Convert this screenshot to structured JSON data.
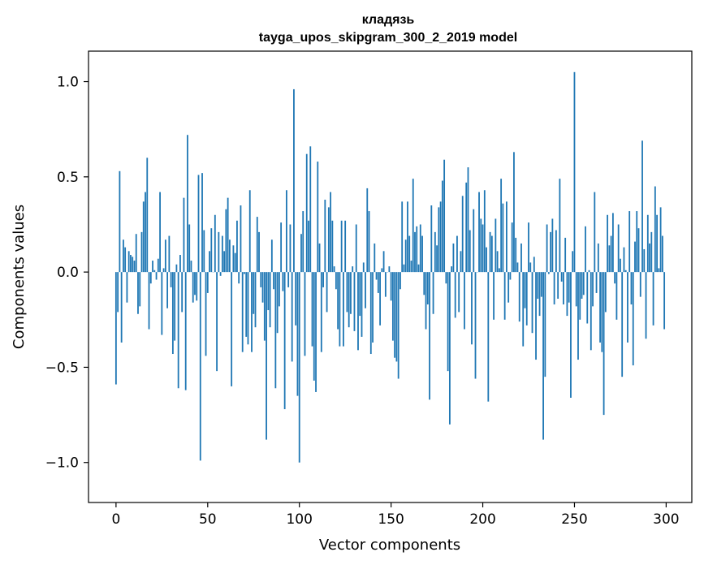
{
  "chart_data": {
    "type": "bar",
    "title": "кладязь",
    "subtitle": "tayga_upos_skipgram_300_2_2019 model",
    "xlabel": "Vector components",
    "ylabel": "Components values",
    "xlim": [
      -15,
      314
    ],
    "ylim": [
      -1.21,
      1.16
    ],
    "xticks": [
      0,
      50,
      100,
      150,
      200,
      250,
      300
    ],
    "yticks": [
      -1.0,
      -0.5,
      0.0,
      0.5,
      1.0
    ],
    "ytick_labels": [
      "−1.0",
      "−0.5",
      "0.0",
      "0.5",
      "1.0"
    ],
    "xtick_labels": [
      "0",
      "50",
      "100",
      "150",
      "200",
      "250",
      "300"
    ],
    "grid": false,
    "bar_color": "#1f77b4",
    "values": [
      -0.59,
      -0.21,
      0.53,
      -0.37,
      0.17,
      0.13,
      -0.16,
      0.11,
      0.09,
      0.08,
      0.06,
      0.2,
      -0.22,
      -0.18,
      0.21,
      0.37,
      0.42,
      0.6,
      -0.3,
      -0.06,
      0.06,
      0.01,
      -0.04,
      0.07,
      0.42,
      -0.33,
      0.02,
      0.17,
      -0.19,
      0.19,
      -0.08,
      -0.43,
      -0.36,
      0.04,
      -0.61,
      0.09,
      -0.21,
      0.39,
      -0.62,
      0.72,
      0.25,
      0.06,
      -0.16,
      -0.12,
      -0.15,
      0.51,
      -0.99,
      0.52,
      0.22,
      -0.44,
      -0.11,
      0.11,
      0.23,
      0.0,
      0.3,
      -0.52,
      0.21,
      -0.02,
      0.19,
      0.11,
      0.33,
      0.39,
      0.17,
      -0.6,
      0.14,
      0.1,
      0.27,
      -0.06,
      0.35,
      -0.42,
      -0.01,
      -0.34,
      -0.38,
      0.43,
      -0.42,
      -0.22,
      -0.29,
      0.29,
      0.21,
      -0.08,
      -0.16,
      -0.36,
      -0.88,
      -0.2,
      -0.29,
      0.17,
      -0.09,
      -0.61,
      -0.32,
      -0.18,
      0.26,
      -0.1,
      -0.72,
      0.43,
      -0.08,
      0.25,
      -0.47,
      0.96,
      -0.28,
      -0.65,
      -1.0,
      0.2,
      0.32,
      -0.44,
      0.62,
      0.27,
      0.66,
      -0.39,
      -0.57,
      -0.63,
      0.58,
      0.15,
      -0.42,
      -0.08,
      0.38,
      -0.21,
      0.34,
      0.42,
      0.27,
      0.03,
      -0.09,
      -0.3,
      -0.39,
      0.27,
      -0.39,
      0.27,
      -0.21,
      -0.29,
      -0.22,
      0.03,
      -0.31,
      0.25,
      -0.41,
      -0.23,
      -0.34,
      0.05,
      -0.19,
      0.44,
      0.32,
      -0.43,
      -0.37,
      0.15,
      -0.04,
      -0.11,
      -0.28,
      0.02,
      0.11,
      -0.13,
      0.0,
      0.03,
      -0.15,
      -0.36,
      -0.45,
      -0.47,
      -0.56,
      -0.09,
      0.37,
      0.04,
      0.17,
      0.37,
      0.19,
      0.06,
      0.49,
      0.21,
      0.24,
      0.04,
      0.25,
      0.19,
      -0.12,
      -0.3,
      -0.17,
      -0.67,
      0.35,
      -0.22,
      0.21,
      0.14,
      0.34,
      0.37,
      0.48,
      0.59,
      -0.06,
      -0.52,
      -0.8,
      0.03,
      0.15,
      -0.24,
      0.19,
      -0.21,
      0.11,
      0.4,
      -0.3,
      0.47,
      0.55,
      0.22,
      -0.38,
      0.33,
      -0.56,
      0.0,
      0.42,
      0.28,
      0.25,
      0.43,
      0.13,
      -0.68,
      0.21,
      0.19,
      -0.25,
      0.28,
      0.11,
      0.02,
      0.49,
      0.36,
      -0.25,
      0.37,
      -0.16,
      -0.04,
      0.26,
      0.63,
      0.18,
      0.05,
      -0.26,
      0.15,
      -0.39,
      -0.19,
      -0.28,
      0.26,
      0.05,
      -0.32,
      0.08,
      -0.46,
      -0.14,
      -0.23,
      -0.13,
      -0.88,
      -0.55,
      0.25,
      -0.01,
      0.21,
      0.28,
      -0.17,
      0.22,
      -0.14,
      0.49,
      -0.05,
      -0.17,
      0.18,
      -0.23,
      -0.16,
      -0.66,
      0.11,
      1.05,
      -0.18,
      -0.46,
      -0.25,
      -0.14,
      -0.12,
      0.24,
      -0.27,
      0.01,
      -0.41,
      -0.18,
      0.42,
      -0.11,
      0.15,
      -0.37,
      -0.42,
      -0.75,
      -0.21,
      0.3,
      0.14,
      0.19,
      0.31,
      -0.06,
      -0.25,
      0.25,
      0.07,
      -0.55,
      0.13,
      0.01,
      -0.37,
      0.32,
      -0.17,
      -0.49,
      0.16,
      0.32,
      0.23,
      -0.13,
      0.69,
      0.12,
      -0.35,
      0.3,
      0.15,
      0.21,
      -0.28,
      0.45,
      0.3,
      0.02,
      0.34,
      0.19,
      -0.3
    ]
  }
}
